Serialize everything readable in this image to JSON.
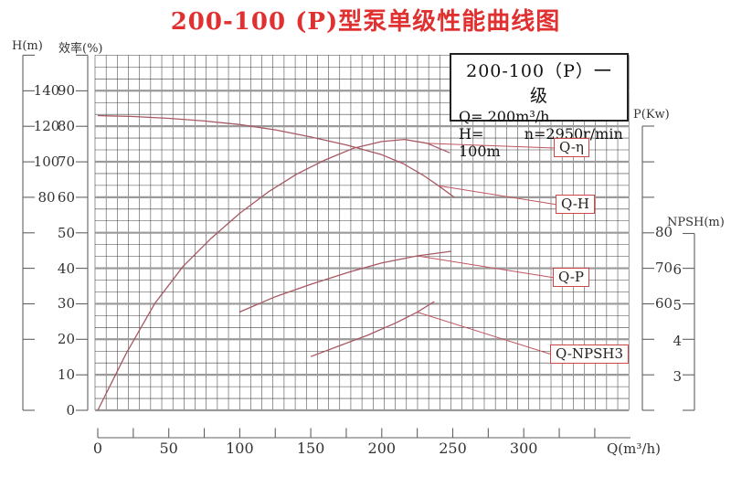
{
  "title": "200-100 (P)型泵单级性能曲线图",
  "title_color": "#e03030",
  "curve_color": "#a85862",
  "label_border_color": "#cc4848",
  "info_box": {
    "model": "200-100（P）一级",
    "flow": "Q= 200m³/h",
    "head": "H= 100m",
    "speed": "n=2950r/min"
  },
  "axes": {
    "x": {
      "label": "Q(m³/h)",
      "tick_labels": [
        0,
        50,
        100,
        150,
        200,
        250,
        300
      ]
    },
    "head": {
      "label": "H(m)",
      "tick_labels": [
        140,
        120,
        100,
        80
      ]
    },
    "efficiency": {
      "label": "效率(%)",
      "tick_labels": [
        90,
        80,
        70,
        60,
        50,
        40,
        30,
        20,
        10,
        0
      ]
    },
    "power": {
      "label": "P(Kw)",
      "tick_labels": [
        80,
        70,
        60
      ]
    },
    "npsh": {
      "label": "NPSH(m)",
      "tick_labels": [
        6,
        5,
        4,
        3
      ]
    }
  },
  "chart_data": {
    "type": "line",
    "title": "200-100 (P)型泵单级性能曲线图",
    "xlabel": "Q (m³/h)",
    "x_range": [
      0,
      375
    ],
    "grid": true,
    "legend_position": "inline-labels",
    "rated": {
      "Q_m3h": 200,
      "H_m": 100,
      "n_rpm": 2950
    },
    "series": [
      {
        "name": "Q-η",
        "quantity": "efficiency",
        "unit": "%",
        "x": [
          0,
          20,
          40,
          60,
          80,
          100,
          120,
          140,
          160,
          180,
          200,
          216,
          232,
          248
        ],
        "y": [
          0,
          16,
          30,
          40.5,
          48.5,
          55.5,
          61.5,
          66.5,
          70.5,
          73.8,
          75.7,
          76.3,
          75.2,
          72.5
        ],
        "y_range": [
          0,
          100
        ]
      },
      {
        "name": "Q-H",
        "quantity": "head",
        "unit": "m",
        "x": [
          0,
          25,
          50,
          75,
          100,
          125,
          150,
          175,
          200,
          215,
          230,
          240,
          251
        ],
        "y": [
          126,
          125.5,
          124.5,
          123,
          121,
          118,
          114,
          109.5,
          104,
          99,
          92,
          86.5,
          80
        ],
        "y_range": [
          0,
          140
        ]
      },
      {
        "name": "Q-P",
        "quantity": "power",
        "unit": "kW",
        "x": [
          100,
          125,
          150,
          175,
          200,
          225,
          249
        ],
        "y": [
          57.5,
          61.8,
          65.3,
          68.5,
          71.3,
          73.3,
          74.6
        ],
        "y_range": [
          30,
          110
        ]
      },
      {
        "name": "Q-NPSH3",
        "quantity": "npsh",
        "unit": "m",
        "x": [
          150,
          170,
          190,
          210,
          225,
          237
        ],
        "y": [
          3.55,
          3.85,
          4.15,
          4.5,
          4.8,
          5.1
        ],
        "y_range": [
          3,
          7
        ]
      }
    ]
  }
}
